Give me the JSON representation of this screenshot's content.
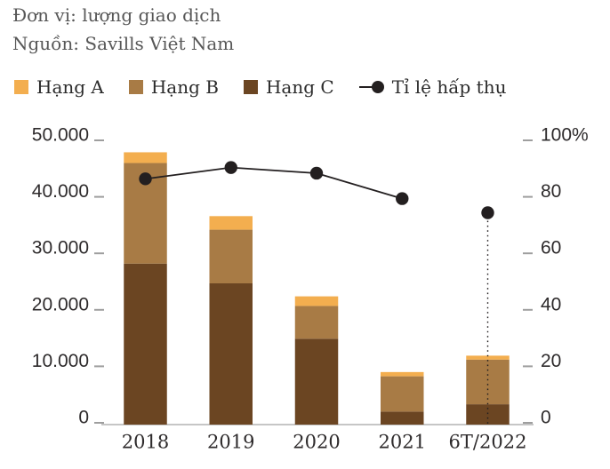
{
  "header": {
    "unit": "Đơn vị: lượng giao dịch",
    "source": "Nguồn: Savills Việt Nam"
  },
  "legend": {
    "items": [
      {
        "label": "Hạng A",
        "marker": "swatch",
        "color": "#F3AE4F"
      },
      {
        "label": "Hạng B",
        "marker": "swatch",
        "color": "#A87B45"
      },
      {
        "label": "Hạng C",
        "marker": "swatch",
        "color": "#6B4522"
      },
      {
        "label": "Tỉ lệ hấp thụ",
        "marker": "line-dot",
        "color": "#231F20"
      }
    ]
  },
  "chart_data": {
    "type": "bar",
    "subtype": "stacked-bars-with-line",
    "categories": [
      "2018",
      "2019",
      "2020",
      "2021",
      "6T/2022"
    ],
    "series": [
      {
        "name": "Hạng C",
        "color": "#6B4522",
        "values": [
          28500,
          25000,
          15200,
          2300,
          3600
        ]
      },
      {
        "name": "Hạng B",
        "color": "#A87B45",
        "values": [
          17800,
          9500,
          5800,
          6250,
          7900
        ]
      },
      {
        "name": "Hạng A",
        "color": "#F3AE4F",
        "values": [
          1900,
          2400,
          1700,
          750,
          700
        ]
      }
    ],
    "line_series": {
      "name": "Tỉ lệ hấp thụ",
      "color": "#231F20",
      "values_percent": [
        87,
        91,
        89,
        80,
        75
      ],
      "solid_segment_last_index": 3,
      "dotted_drop_index": 4
    },
    "left_axis": {
      "tick_labels": [
        "0",
        "10.000",
        "20.000",
        "30.000",
        "40.000",
        "50.000"
      ],
      "min": 0,
      "max": 50000
    },
    "right_axis": {
      "tick_labels": [
        "0",
        "20",
        "40",
        "60",
        "80",
        "100%"
      ],
      "min": 0,
      "max": 100
    },
    "grid": "off",
    "legend_position": "top",
    "axis_text_color": "#2E2B2C",
    "axis_line_color": "#B3B3B3",
    "tick_color": "#9E9E9E"
  }
}
